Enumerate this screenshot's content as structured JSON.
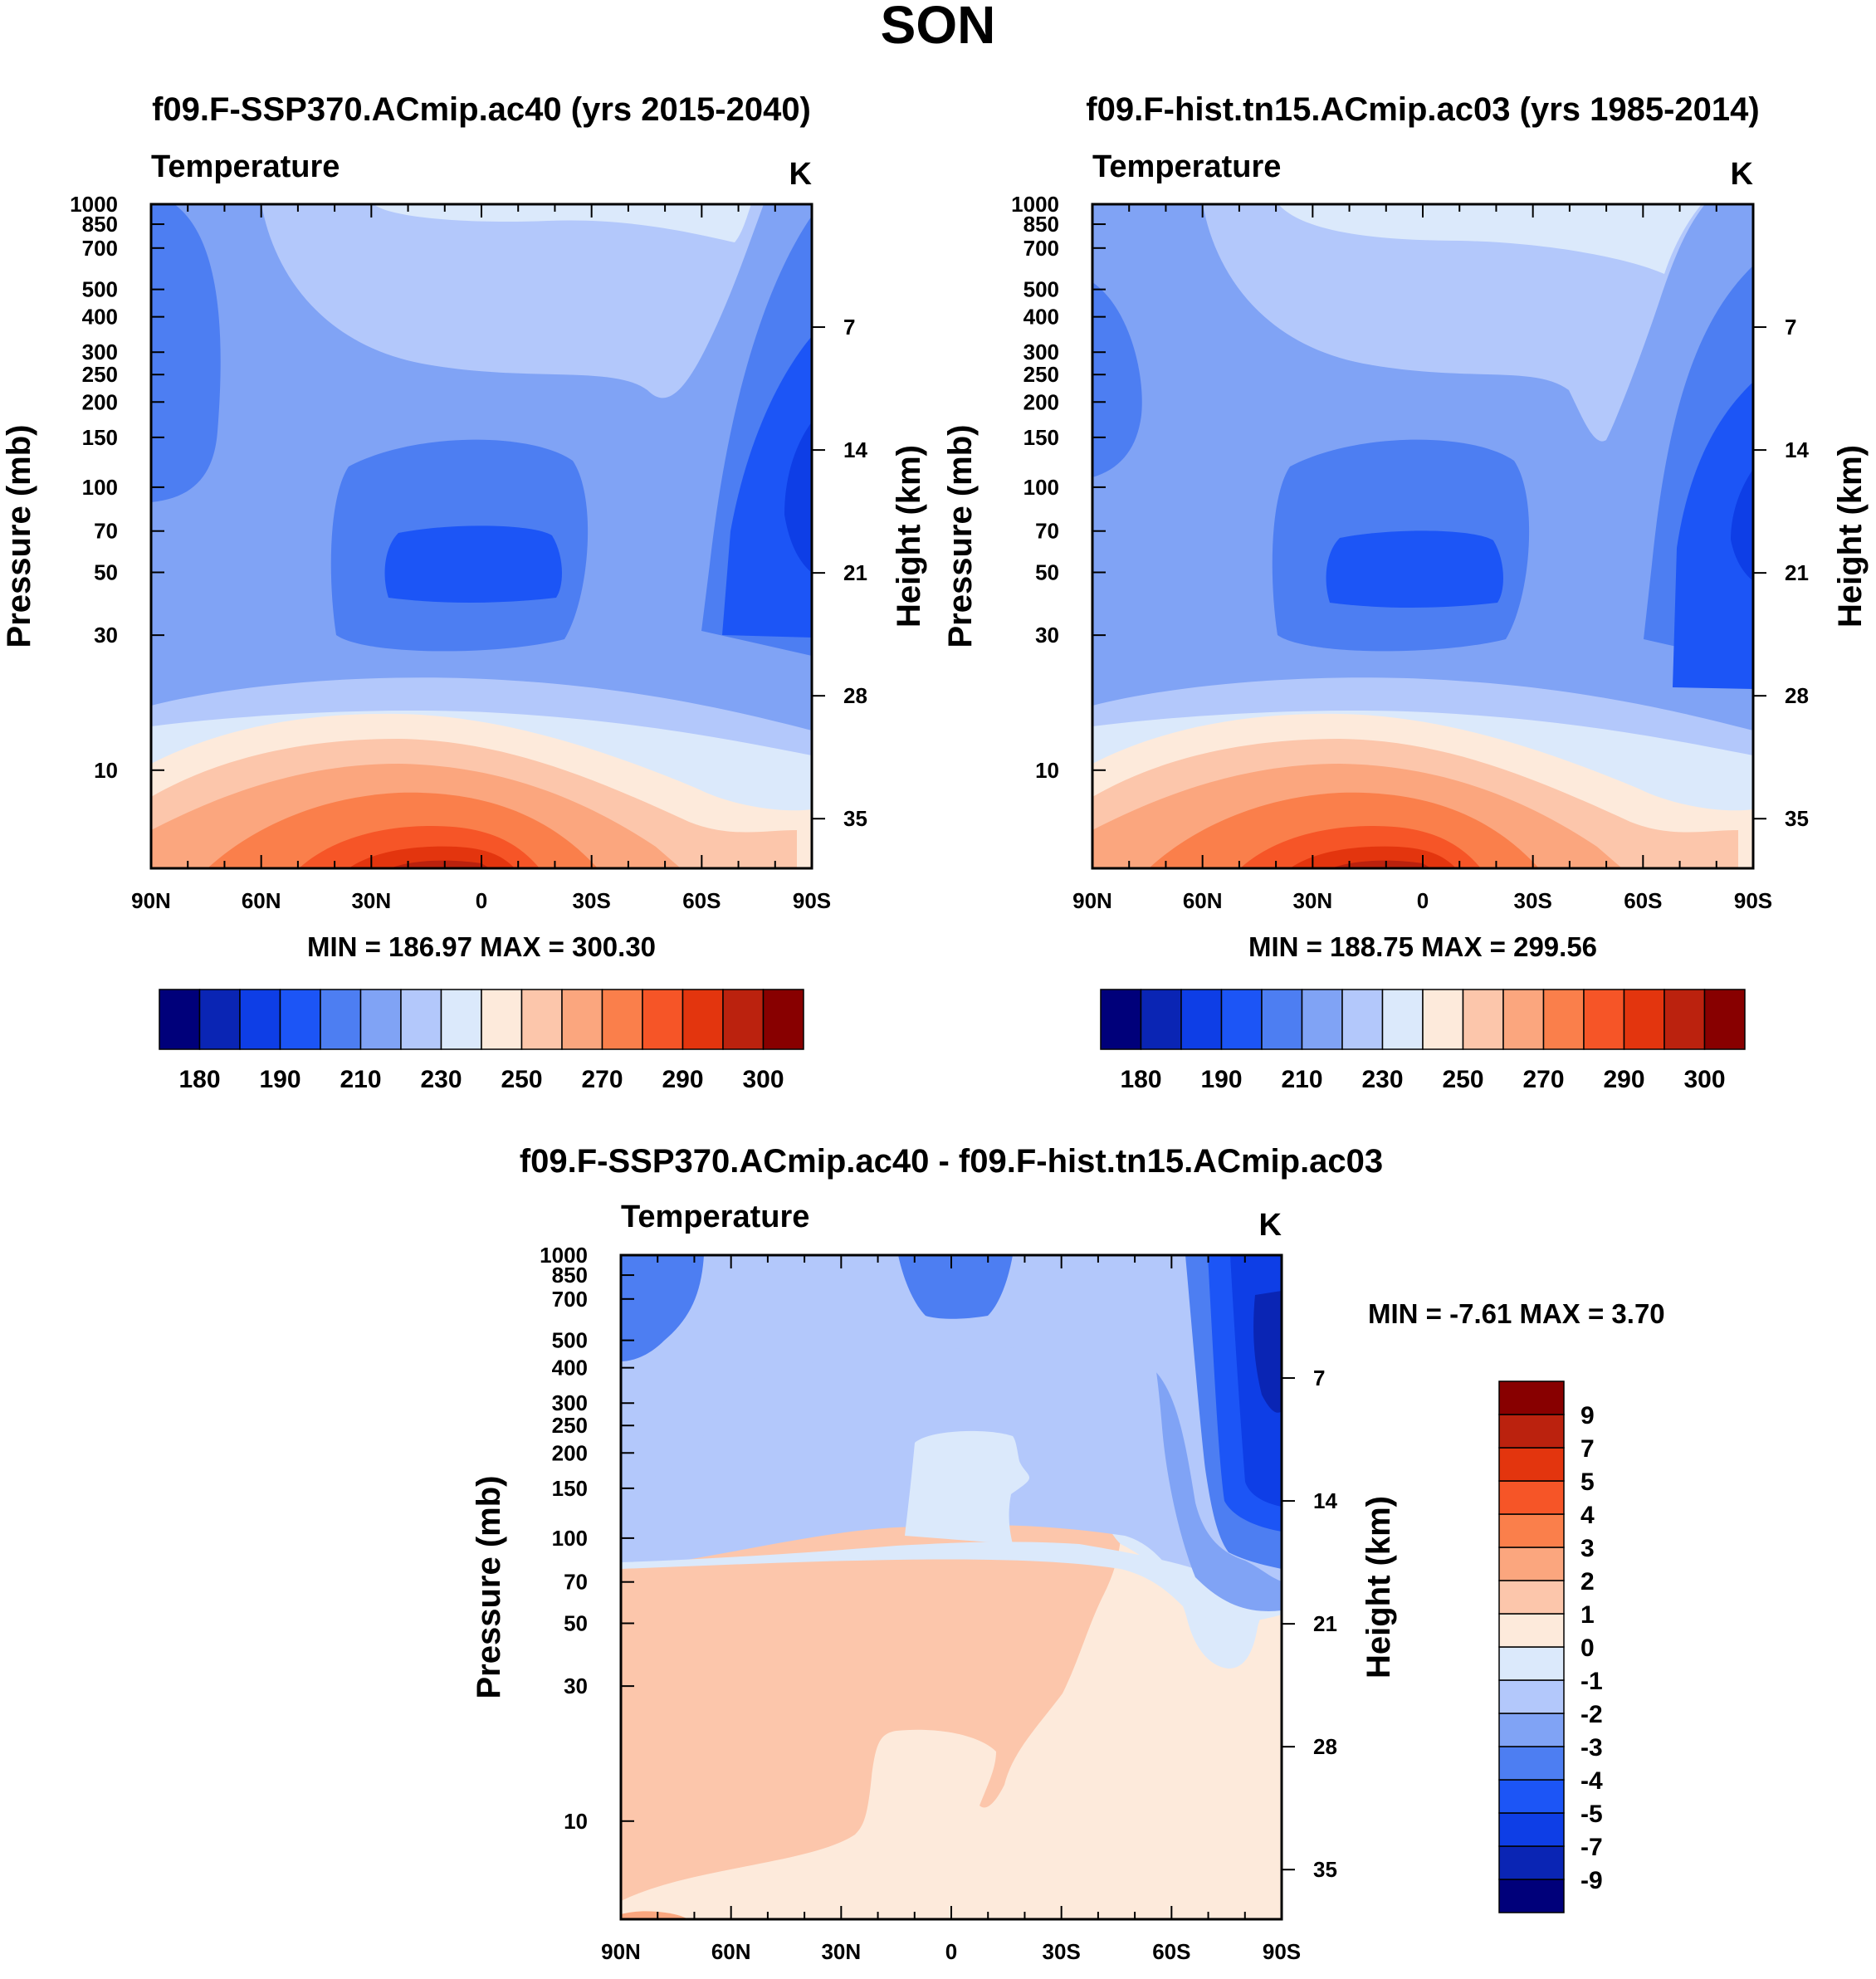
{
  "figure": {
    "title": "SON"
  },
  "chart_data": [
    {
      "type": "heatmap",
      "title": "f09.F-SSP370.ACmip.ac40 (yrs 2015-2040)",
      "variable": "Temperature",
      "units": "K",
      "xlabel": "",
      "ylabel": "Pressure (mb)",
      "ylabel_right": "Height (km)",
      "x_ticks": [
        "90N",
        "60N",
        "30N",
        "0",
        "30S",
        "60S",
        "90S"
      ],
      "x_tick_values": [
        90,
        60,
        30,
        0,
        -30,
        -60,
        -90
      ],
      "xlim": [
        90,
        -90
      ],
      "y_ticks": [
        10,
        30,
        50,
        70,
        100,
        150,
        200,
        250,
        300,
        400,
        500,
        700,
        850,
        1000
      ],
      "ylim_pressure": [
        1000,
        4.5
      ],
      "height_ticks": [
        35,
        28,
        21,
        14,
        7
      ],
      "stats": "MIN = 186.97  MAX = 300.30",
      "min": 186.97,
      "max": 300.3,
      "colorbar": {
        "orientation": "horizontal",
        "colors": [
          "#00007a",
          "#0a25b4",
          "#0e3ee6",
          "#1c55f6",
          "#4d7ef2",
          "#80a3f5",
          "#b3c8fb",
          "#dbe9fb",
          "#fdeadb",
          "#fcc6ab",
          "#fba67e",
          "#fa7f4b",
          "#f65527",
          "#e3350e",
          "#bb220e",
          "#880000"
        ],
        "labels": [
          "180",
          "190",
          "210",
          "230",
          "250",
          "270",
          "290",
          "300"
        ]
      }
    },
    {
      "type": "heatmap",
      "title": "f09.F-hist.tn15.ACmip.ac03 (yrs 1985-2014)",
      "variable": "Temperature",
      "units": "K",
      "xlabel": "",
      "ylabel": "Pressure (mb)",
      "ylabel_right": "Height (km)",
      "x_ticks": [
        "90N",
        "60N",
        "30N",
        "0",
        "30S",
        "60S",
        "90S"
      ],
      "x_tick_values": [
        90,
        60,
        30,
        0,
        -30,
        -60,
        -90
      ],
      "xlim": [
        90,
        -90
      ],
      "y_ticks": [
        10,
        30,
        50,
        70,
        100,
        150,
        200,
        250,
        300,
        400,
        500,
        700,
        850,
        1000
      ],
      "ylim_pressure": [
        1000,
        4.5
      ],
      "height_ticks": [
        35,
        28,
        21,
        14,
        7
      ],
      "stats": "MIN = 188.75  MAX = 299.56",
      "min": 188.75,
      "max": 299.56,
      "colorbar": {
        "orientation": "horizontal",
        "colors": [
          "#00007a",
          "#0a25b4",
          "#0e3ee6",
          "#1c55f6",
          "#4d7ef2",
          "#80a3f5",
          "#b3c8fb",
          "#dbe9fb",
          "#fdeadb",
          "#fcc6ab",
          "#fba67e",
          "#fa7f4b",
          "#f65527",
          "#e3350e",
          "#bb220e",
          "#880000"
        ],
        "labels": [
          "180",
          "190",
          "210",
          "230",
          "250",
          "270",
          "290",
          "300"
        ]
      }
    },
    {
      "type": "heatmap",
      "title": "f09.F-SSP370.ACmip.ac40 - f09.F-hist.tn15.ACmip.ac03",
      "variable": "Temperature",
      "units": "K",
      "xlabel": "",
      "ylabel": "Pressure (mb)",
      "ylabel_right": "Height (km)",
      "x_ticks": [
        "90N",
        "60N",
        "30N",
        "0",
        "30S",
        "60S",
        "90S"
      ],
      "x_tick_values": [
        90,
        60,
        30,
        0,
        -30,
        -60,
        -90
      ],
      "xlim": [
        90,
        -90
      ],
      "y_ticks": [
        10,
        30,
        50,
        70,
        100,
        150,
        200,
        250,
        300,
        400,
        500,
        700,
        850,
        1000
      ],
      "ylim_pressure": [
        1000,
        4.5
      ],
      "height_ticks": [
        35,
        28,
        21,
        14,
        7
      ],
      "stats": "MIN =  -7.61  MAX =   3.70",
      "min": -7.61,
      "max": 3.7,
      "colorbar": {
        "orientation": "vertical",
        "colors": [
          "#00007a",
          "#0a25b4",
          "#0e3ee6",
          "#1c55f6",
          "#4d7ef2",
          "#80a3f5",
          "#b3c8fb",
          "#dbe9fb",
          "#fdeadb",
          "#fcc6ab",
          "#fba67e",
          "#fa7f4b",
          "#f65527",
          "#e3350e",
          "#bb220e",
          "#880000"
        ],
        "labels": [
          "-9",
          "-7",
          "-5",
          "-4",
          "-3",
          "-2",
          "-1",
          "0",
          "1",
          "2",
          "3",
          "4",
          "5",
          "7",
          "9"
        ]
      }
    }
  ]
}
